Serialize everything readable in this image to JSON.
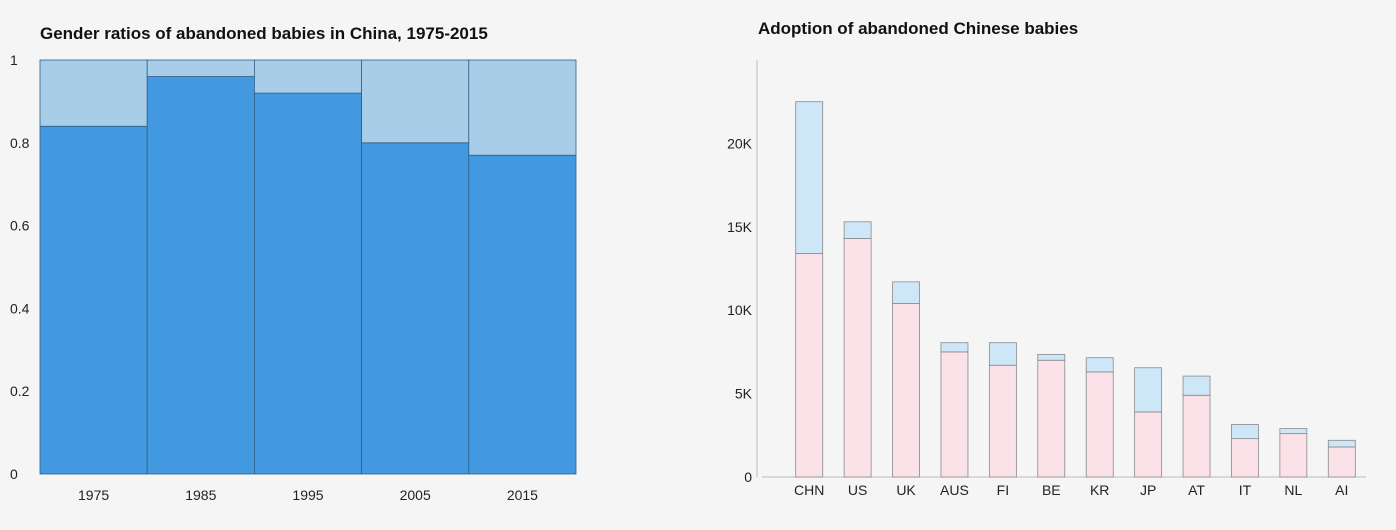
{
  "chart_data": [
    {
      "type": "bar",
      "stacked": true,
      "title": "Gender ratios of abandoned babies in China, 1975-2015",
      "xlabel": "",
      "ylabel": "",
      "categories": [
        "1975",
        "1985",
        "1995",
        "2005",
        "2015"
      ],
      "series": [
        {
          "values": [
            0.84,
            0.96,
            0.92,
            0.8,
            0.77
          ]
        },
        {
          "values": [
            0.16,
            0.04,
            0.08,
            0.2,
            0.23
          ]
        }
      ],
      "yticks": [
        "0",
        "0.2",
        "0.4",
        "0.6",
        "0.8",
        "1"
      ],
      "ytick_values": [
        0,
        0.2,
        0.4,
        0.6,
        0.8,
        1
      ],
      "ylim": [
        0,
        1
      ],
      "colors": [
        "#4399e0",
        "#a7cde8"
      ],
      "grid": false,
      "legend": "none"
    },
    {
      "type": "bar",
      "stacked": true,
      "title": "Adoption of abandoned Chinese babies",
      "xlabel": "",
      "ylabel": "",
      "categories": [
        "CHN",
        "US",
        "UK",
        "AUS",
        "FI",
        "BE",
        "KR",
        "JP",
        "AT",
        "IT",
        "NL",
        "AI"
      ],
      "series": [
        {
          "values": [
            13400,
            14300,
            10400,
            7500,
            6700,
            7000,
            6300,
            3900,
            4900,
            2300,
            2600,
            1800
          ]
        },
        {
          "values": [
            9100,
            1000,
            1300,
            550,
            1350,
            350,
            850,
            2650,
            1150,
            850,
            300,
            400
          ]
        }
      ],
      "yticks": [
        "0",
        "5K",
        "10K",
        "15K",
        "20K"
      ],
      "ytick_values": [
        0,
        5000,
        10000,
        15000,
        20000
      ],
      "ylim": [
        0,
        25000
      ],
      "colors": [
        "#fbe1e8",
        "#cde6f8"
      ],
      "grid": false,
      "legend": "none"
    }
  ]
}
